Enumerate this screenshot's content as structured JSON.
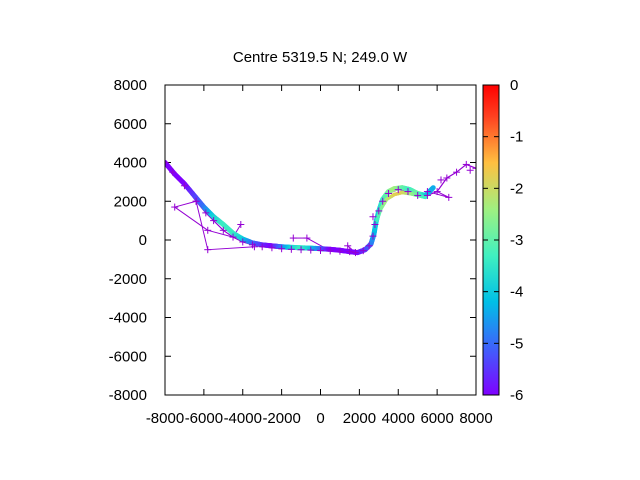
{
  "chart_data": {
    "type": "scatter",
    "title": "Centre 5319.5 N; 249.0  W",
    "xlabel": "",
    "ylabel": "",
    "xlim": [
      -8000,
      8000
    ],
    "ylim": [
      -8000,
      8000
    ],
    "x_ticks": [
      -8000,
      -6000,
      -4000,
      -2000,
      0,
      2000,
      4000,
      6000,
      8000
    ],
    "x_tick_labels": [
      "-8000",
      "-6000",
      "-4000",
      "-2000",
      "0",
      "2000",
      "4000",
      "6000",
      "8000"
    ],
    "y_ticks": [
      -8000,
      -6000,
      -4000,
      -2000,
      0,
      2000,
      4000,
      6000,
      8000
    ],
    "y_tick_labels": [
      "-8000",
      "-6000",
      "-4000",
      "-2000",
      "0",
      "2000",
      "4000",
      "6000",
      "8000"
    ],
    "colorbar": {
      "range": [
        -6,
        0
      ],
      "ticks": [
        0,
        -1,
        -2,
        -3,
        -4,
        -5,
        -6
      ],
      "tick_labels": [
        "0",
        "-1",
        "-2",
        "-3",
        "-4",
        "-5",
        "-6"
      ],
      "palette": [
        "#7f00ff",
        "#3f60fb",
        "#00bfe6",
        "#40f0c0",
        "#a0f080",
        "#ffbf40",
        "#ff4020",
        "#ff0000"
      ]
    },
    "grid": false,
    "legend": "none",
    "series": [
      {
        "style": "line-with-cross-markers",
        "color": "#9400d3",
        "points": [
          [
            -8000,
            4000
          ],
          [
            -7600,
            3500
          ],
          [
            -7000,
            2800
          ],
          [
            -6400,
            2000
          ],
          [
            -5900,
            1400
          ],
          [
            -5500,
            1000
          ],
          [
            -5000,
            500
          ],
          [
            -4500,
            150
          ],
          [
            -4000,
            -100
          ],
          [
            -3500,
            -250
          ],
          [
            -3000,
            -350
          ],
          [
            -2500,
            -400
          ],
          [
            -2000,
            -450
          ],
          [
            -1500,
            -480
          ],
          [
            -1000,
            -500
          ],
          [
            -500,
            -520
          ],
          [
            0,
            -540
          ],
          [
            500,
            -560
          ],
          [
            1000,
            -580
          ],
          [
            1500,
            -600
          ],
          [
            1800,
            -650
          ],
          [
            2200,
            -550
          ],
          [
            2500,
            -300
          ],
          [
            2700,
            200
          ],
          [
            2800,
            800
          ],
          [
            3000,
            1500
          ],
          [
            3200,
            2000
          ],
          [
            3500,
            2400
          ],
          [
            4000,
            2600
          ],
          [
            4500,
            2500
          ],
          [
            5000,
            2300
          ],
          [
            5500,
            2300
          ],
          [
            6000,
            2500
          ],
          [
            6500,
            3200
          ],
          [
            7000,
            3500
          ],
          [
            7500,
            3900
          ],
          [
            8000,
            3700
          ]
        ],
        "outliers": [
          [
            -7500,
            1700
          ],
          [
            -5800,
            500
          ],
          [
            -5800,
            -500
          ],
          [
            -6400,
            2000
          ],
          [
            -4100,
            800
          ],
          [
            -3400,
            -350
          ],
          [
            -1400,
            100
          ],
          [
            -700,
            100
          ],
          [
            1400,
            -300
          ],
          [
            2700,
            1200
          ],
          [
            5500,
            2500
          ],
          [
            6600,
            2200
          ],
          [
            7700,
            3600
          ],
          [
            6200,
            3100
          ]
        ]
      },
      {
        "style": "color-mapped-dense-track",
        "colored_points": [
          [
            -8000,
            4000,
            -6
          ],
          [
            -7500,
            3400,
            -6
          ],
          [
            -7000,
            2900,
            -6
          ],
          [
            -6500,
            2300,
            -5.5
          ],
          [
            -6000,
            1700,
            -5
          ],
          [
            -5500,
            1200,
            -4
          ],
          [
            -5000,
            800,
            -3.5
          ],
          [
            -4500,
            350,
            -3.5
          ],
          [
            -4000,
            50,
            -4
          ],
          [
            -3500,
            -150,
            -5
          ],
          [
            -3000,
            -250,
            -5.5
          ],
          [
            -2500,
            -300,
            -6
          ],
          [
            -2000,
            -350,
            -5
          ],
          [
            -1500,
            -380,
            -4
          ],
          [
            -1000,
            -400,
            -3.5
          ],
          [
            -500,
            -420,
            -4
          ],
          [
            0,
            -450,
            -5
          ],
          [
            500,
            -480,
            -6
          ],
          [
            1000,
            -530,
            -6
          ],
          [
            1500,
            -600,
            -6
          ],
          [
            1900,
            -650,
            -6
          ],
          [
            2300,
            -500,
            -5.5
          ],
          [
            2600,
            -200,
            -5
          ],
          [
            2750,
            300,
            -4.5
          ],
          [
            2850,
            900,
            -4
          ],
          [
            3000,
            1500,
            -4
          ],
          [
            3200,
            2100,
            -3.5
          ],
          [
            3500,
            2500,
            -3
          ],
          [
            3800,
            2650,
            -2.5
          ],
          [
            4200,
            2700,
            -3
          ],
          [
            4600,
            2600,
            -3.5
          ],
          [
            5000,
            2400,
            -3
          ],
          [
            5400,
            2300,
            -4
          ],
          [
            5800,
            2700,
            -4.5
          ]
        ],
        "inner_band": [
          [
            2900,
            1000,
            -3.5
          ],
          [
            3100,
            1600,
            -3
          ],
          [
            3400,
            2100,
            -2.5
          ],
          [
            3800,
            2350,
            -2
          ],
          [
            4200,
            2450,
            -2
          ],
          [
            4600,
            2400,
            -2.5
          ],
          [
            5000,
            2300,
            -3
          ],
          [
            5400,
            2200,
            -3.5
          ]
        ]
      }
    ]
  }
}
